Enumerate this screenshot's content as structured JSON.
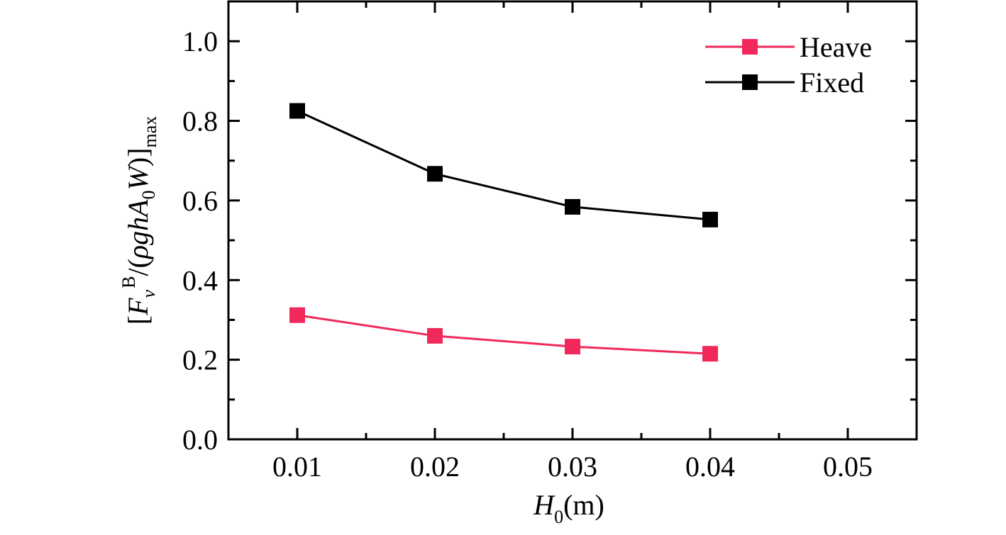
{
  "chart_data": {
    "type": "line",
    "title": "",
    "x": [
      0.01,
      0.02,
      0.03,
      0.04
    ],
    "x_ticks": [
      "0.01",
      "0.02",
      "0.03",
      "0.04",
      "0.05"
    ],
    "y_ticks": [
      "0.0",
      "0.2",
      "0.4",
      "0.6",
      "0.8",
      "1.0"
    ],
    "xlim": [
      0.005,
      0.055
    ],
    "ylim": [
      0.0,
      1.1
    ],
    "xlabel": {
      "symbol": "H",
      "subscript": "0",
      "unit": "(m)"
    },
    "ylabel": {
      "open": "[",
      "F": "F",
      "F_sub": "v",
      "F_sup": "B",
      "mid": "/(",
      "rgh": "ρghA",
      "A_sub": "0",
      "W": "W",
      "close": ")]",
      "max": "max"
    },
    "legend_position": "top-right",
    "grid": false,
    "series": [
      {
        "name": "Heave",
        "color": "#f0295a",
        "values": [
          0.312,
          0.26,
          0.233,
          0.215
        ]
      },
      {
        "name": "Fixed",
        "color": "#000000",
        "values": [
          0.825,
          0.667,
          0.584,
          0.552
        ]
      }
    ]
  }
}
